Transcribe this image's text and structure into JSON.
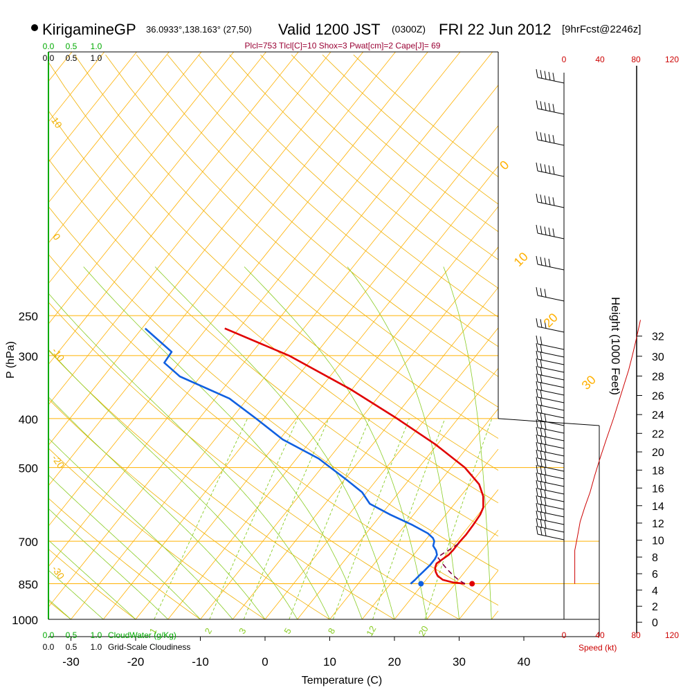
{
  "header": {
    "station": "KirigamineGP",
    "location": "36.0933°,138.163° (27,50)",
    "valid": "Valid 1200 JST",
    "utc": "(0300Z)",
    "date": "FRI 22 Jun 2012",
    "forecast": "[9hrFcst@2246z]",
    "indices": "Plcl=753 Tlcl[C]=10 Shox=3 Pwat[cm]=2 Cape[J]= 69"
  },
  "colors": {
    "isotherm": "#ffb000",
    "dry_adiabat": "#f0b000",
    "moist_adiabat": "#88cc22",
    "mixing_ratio": "#88cc22",
    "temperature": "#e00000",
    "dewpoint": "#1060e0",
    "parcel": "#800040",
    "cloud_water": "#00aa00",
    "speed": "#cc0000",
    "indices": "#990033"
  },
  "chart_data": {
    "type": "line",
    "title": "",
    "xlabel": "Temperature (C)",
    "ylabel": "P (hPa)",
    "y_log_scale": true,
    "xlim": [
      -33,
      47
    ],
    "pressure_ticks": [
      250,
      300,
      400,
      500,
      700,
      850,
      1000
    ],
    "temperature_ticks": [
      "-30",
      "-20",
      "-10",
      "0",
      "10",
      "20",
      "30",
      "40"
    ],
    "skew_isotherm_labels": [
      "0",
      "10",
      "20",
      "30"
    ],
    "dry_adiabat_labels": [
      "10",
      "0",
      "-10",
      "-20",
      "-30"
    ],
    "mixing_ratio_labels": [
      "1",
      "2",
      "3",
      "5",
      "8",
      "12",
      "20"
    ],
    "series": [
      {
        "name": "",
        "key": "temperature",
        "pressure": [
          850,
          845,
          835,
          820,
          805,
          790,
          775,
          760,
          745,
          730,
          715,
          700,
          680,
          650,
          620,
          600,
          570,
          540,
          500,
          450,
          400,
          350,
          300,
          265
        ],
        "temperature": [
          26.5,
          24.5,
          22.6,
          21.3,
          20.5,
          19.9,
          19.6,
          20.0,
          20.4,
          20.5,
          20.5,
          20.5,
          20.6,
          20.5,
          20.3,
          19.9,
          18.5,
          16.4,
          12.1,
          4.7,
          -4.4,
          -15.2,
          -28.9,
          -42.2
        ]
      },
      {
        "name": "",
        "key": "dewpoint",
        "pressure": [
          850,
          835,
          820,
          800,
          780,
          760,
          745,
          730,
          715,
          700,
          690,
          675,
          650,
          620,
          590,
          560,
          530,
          480,
          440,
          400,
          365,
          330,
          310,
          295,
          265
        ],
        "temperature": [
          18.1,
          18.3,
          18.4,
          18.6,
          18.8,
          18.8,
          18.6,
          17.9,
          16.9,
          16.5,
          15.9,
          14.5,
          11.1,
          6.4,
          1.9,
          -0.7,
          -4.5,
          -11.6,
          -19.5,
          -26.2,
          -32.8,
          -43.2,
          -47.3,
          -47.5,
          -54.5
        ]
      },
      {
        "name": "",
        "key": "parcel",
        "pressure": [
          850,
          835,
          815,
          795,
          775,
          753,
          740,
          725,
          705
        ],
        "temperature": [
          26.5,
          25.0,
          23.4,
          21.9,
          20.5,
          19.0,
          19.4,
          20.0,
          20.6
        ]
      }
    ],
    "surface_points": [
      {
        "key": "temperature",
        "pressure": 850,
        "temperature": 27.6
      },
      {
        "key": "dewpoint",
        "pressure": 850,
        "temperature": 19.7
      }
    ],
    "side_panels": {
      "cloud_water": {
        "label": "CloudWater (g/Kg)",
        "ticks": [
          "0.0",
          "0.5",
          "1.0"
        ],
        "grid_scale_label": "Grid-Scale Cloudiness",
        "grid_scale_ticks": [
          "0.0",
          "0.5",
          "1.0"
        ]
      },
      "wind_speed": {
        "label": "Speed (kt)",
        "ticks": [
          "0",
          "40",
          "80",
          "120"
        ],
        "pressure": [
          850,
          820,
          790,
          760,
          730,
          700,
          670,
          640,
          600,
          560,
          520,
          480,
          440,
          400,
          360,
          320,
          300,
          280,
          255
        ],
        "speed": [
          12,
          12,
          12,
          12,
          12,
          14,
          16,
          18,
          23,
          29,
          34,
          40,
          47,
          55,
          63,
          72,
          76,
          80,
          85
        ]
      },
      "height": {
        "label": "Height (1000 Feet)",
        "ticks": [
          "0",
          "2",
          "4",
          "6",
          "8",
          "10",
          "12",
          "14",
          "16",
          "18",
          "20",
          "22",
          "24",
          "26",
          "28",
          "30",
          "32"
        ]
      }
    }
  }
}
